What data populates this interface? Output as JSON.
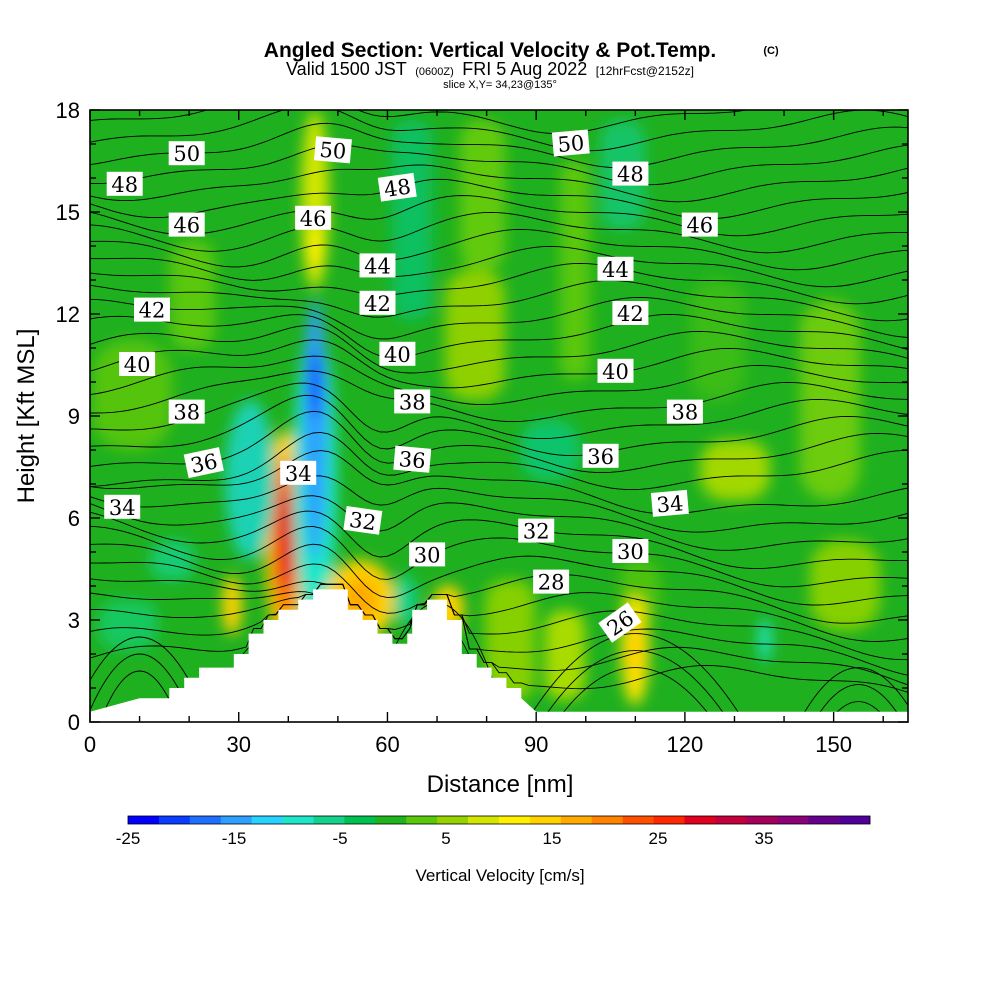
{
  "chart_data": {
    "type": "heatmap",
    "title": "Angled Section: Vertical Velocity & Pot.Temp.",
    "title_mark": "(C)",
    "subtitle": {
      "valid": "Valid 1500 JST",
      "utc": "(0600Z)",
      "date": "FRI 5 Aug 2022",
      "forecast": "[12hrFcst@2152z]"
    },
    "slice_text": "slice X,Y= 34,23@135°",
    "xlabel": "Distance [nm]",
    "ylabel": "Height [Kft MSL]",
    "xlim": [
      0,
      165
    ],
    "ylim": [
      0,
      18
    ],
    "x_ticks": [
      0,
      30,
      60,
      90,
      120,
      150
    ],
    "y_ticks": [
      0,
      3,
      6,
      9,
      12,
      15,
      18
    ],
    "colorbar": {
      "label": "Vertical Velocity [cm/s]",
      "range": [
        -25,
        45
      ],
      "step": 5,
      "tick_values": [
        -25,
        -15,
        -5,
        5,
        15,
        25,
        35
      ],
      "colors": [
        "#0000ff",
        "#0a3cff",
        "#1e6eff",
        "#2da0ff",
        "#28d2ff",
        "#1ee6c8",
        "#14d28c",
        "#00c050",
        "#1eb41e",
        "#5ac80a",
        "#96d200",
        "#d2e600",
        "#fff000",
        "#ffd200",
        "#ffaa00",
        "#ff8200",
        "#ff5000",
        "#ff2800",
        "#e1001e",
        "#c3003c",
        "#a5005a",
        "#8c0078",
        "#64008c",
        "#50009b"
      ]
    },
    "terrain_top_kft": [
      [
        0,
        0.3
      ],
      [
        10,
        0.7
      ],
      [
        16,
        0.7
      ],
      [
        16,
        1.0
      ],
      [
        19,
        1.0
      ],
      [
        19,
        1.3
      ],
      [
        22,
        1.3
      ],
      [
        22,
        1.6
      ],
      [
        29,
        1.6
      ],
      [
        29,
        2.0
      ],
      [
        32,
        2.0
      ],
      [
        32,
        2.6
      ],
      [
        35,
        2.6
      ],
      [
        35,
        3.0
      ],
      [
        38,
        3.0
      ],
      [
        38,
        3.3
      ],
      [
        42,
        3.3
      ],
      [
        42,
        3.6
      ],
      [
        45,
        3.6
      ],
      [
        45,
        3.9
      ],
      [
        52,
        3.9
      ],
      [
        52,
        3.3
      ],
      [
        55,
        3.3
      ],
      [
        55,
        3.0
      ],
      [
        58,
        3.0
      ],
      [
        58,
        2.6
      ],
      [
        61,
        2.6
      ],
      [
        61,
        2.3
      ],
      [
        64,
        2.3
      ],
      [
        64,
        2.6
      ],
      [
        65,
        2.6
      ],
      [
        65,
        3.3
      ],
      [
        68,
        3.3
      ],
      [
        68,
        3.6
      ],
      [
        72,
        3.6
      ],
      [
        72,
        3.0
      ],
      [
        75,
        3.0
      ],
      [
        75,
        2.0
      ],
      [
        78,
        2.0
      ],
      [
        78,
        1.6
      ],
      [
        81,
        1.6
      ],
      [
        81,
        1.3
      ],
      [
        84,
        1.3
      ],
      [
        84,
        1.0
      ],
      [
        87,
        1.0
      ],
      [
        87,
        0.7
      ],
      [
        90,
        0.3
      ],
      [
        165,
        0.3
      ]
    ],
    "contour_labels": [
      {
        "value": "50",
        "x": 19.5,
        "y": 16.7,
        "angle": 0
      },
      {
        "value": "50",
        "x": 49,
        "y": 16.8,
        "angle": 5
      },
      {
        "value": "50",
        "x": 97,
        "y": 17.0,
        "angle": -5
      },
      {
        "value": "48",
        "x": 7,
        "y": 15.8,
        "angle": 0
      },
      {
        "value": "48",
        "x": 62,
        "y": 15.7,
        "angle": -8
      },
      {
        "value": "48",
        "x": 109,
        "y": 16.1,
        "angle": 0
      },
      {
        "value": "46",
        "x": 19.5,
        "y": 14.6,
        "angle": 0
      },
      {
        "value": "46",
        "x": 45,
        "y": 14.8,
        "angle": 0
      },
      {
        "value": "46",
        "x": 123,
        "y": 14.6,
        "angle": 0
      },
      {
        "value": "44",
        "x": 58,
        "y": 13.4,
        "angle": 0
      },
      {
        "value": "44",
        "x": 106,
        "y": 13.3,
        "angle": 0
      },
      {
        "value": "42",
        "x": 12.5,
        "y": 12.1,
        "angle": 0
      },
      {
        "value": "42",
        "x": 58,
        "y": 12.3,
        "angle": 0
      },
      {
        "value": "42",
        "x": 109,
        "y": 12.0,
        "angle": 0
      },
      {
        "value": "40",
        "x": 9.5,
        "y": 10.5,
        "angle": 0
      },
      {
        "value": "40",
        "x": 62,
        "y": 10.8,
        "angle": 0
      },
      {
        "value": "40",
        "x": 106,
        "y": 10.3,
        "angle": 0
      },
      {
        "value": "38",
        "x": 19.5,
        "y": 9.1,
        "angle": 0
      },
      {
        "value": "38",
        "x": 65,
        "y": 9.4,
        "angle": 0
      },
      {
        "value": "38",
        "x": 120,
        "y": 9.1,
        "angle": 0
      },
      {
        "value": "36",
        "x": 23,
        "y": 7.6,
        "angle": -12
      },
      {
        "value": "36",
        "x": 65,
        "y": 7.7,
        "angle": 5
      },
      {
        "value": "36",
        "x": 103,
        "y": 7.8,
        "angle": 0
      },
      {
        "value": "34",
        "x": 42,
        "y": 7.3,
        "angle": 0
      },
      {
        "value": "34",
        "x": 6.5,
        "y": 6.3,
        "angle": 0
      },
      {
        "value": "34",
        "x": 117,
        "y": 6.4,
        "angle": -5
      },
      {
        "value": "32",
        "x": 55,
        "y": 5.9,
        "angle": 8
      },
      {
        "value": "32",
        "x": 90,
        "y": 5.6,
        "angle": 0
      },
      {
        "value": "30",
        "x": 68,
        "y": 4.9,
        "angle": 0
      },
      {
        "value": "30",
        "x": 109,
        "y": 5.0,
        "angle": 0
      },
      {
        "value": "28",
        "x": 93,
        "y": 4.1,
        "angle": 0
      },
      {
        "value": "26",
        "x": 107,
        "y": 2.9,
        "angle": -35
      }
    ]
  }
}
